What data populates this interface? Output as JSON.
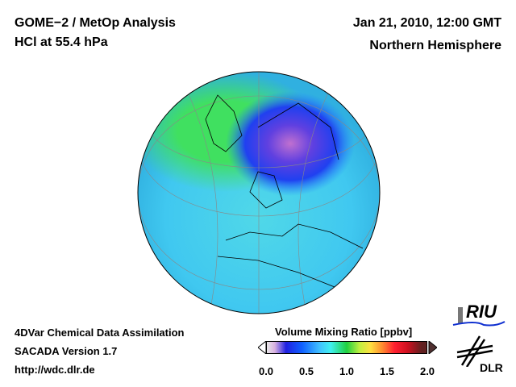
{
  "header": {
    "title": "GOME−2 / MetOp Analysis",
    "subtitle": "HCl at 55.4 hPa",
    "date": "Jan 21, 2010, 12:00 GMT",
    "region": "Northern Hemisphere"
  },
  "footer": {
    "line1": "4DVar Chemical Data Assimilation",
    "line2": "SACADA Version 1.7",
    "url": "http://wdc.dlr.de"
  },
  "colorbar": {
    "label": "Volume Mixing Ratio [ppbv]",
    "ticks": [
      "0.0",
      "0.5",
      "1.0",
      "1.5",
      "2.0"
    ],
    "range": [
      0.0,
      2.0
    ]
  },
  "logos": {
    "riu": "RIU",
    "dlr": "DLR"
  }
}
